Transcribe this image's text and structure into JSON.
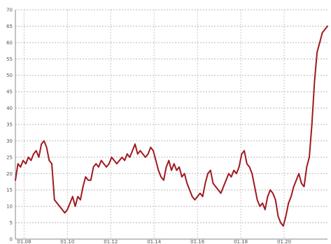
{
  "chart_data": {
    "type": "line",
    "title": "",
    "xlabel": "",
    "ylabel": "",
    "ylim": [
      0,
      70
    ],
    "yticks": [
      0,
      5,
      10,
      15,
      20,
      25,
      30,
      35,
      40,
      45,
      50,
      55,
      60,
      65,
      70
    ],
    "xlim": [
      0,
      36
    ],
    "xticks": [
      {
        "x": 1.0,
        "label": "01.08"
      },
      {
        "x": 6.0,
        "label": "01.10"
      },
      {
        "x": 11.0,
        "label": "01.12"
      },
      {
        "x": 16.0,
        "label": "01.14"
      },
      {
        "x": 21.0,
        "label": "01.16"
      },
      {
        "x": 26.0,
        "label": "01.18"
      },
      {
        "x": 31.0,
        "label": "01.20"
      }
    ],
    "grid": true,
    "line_color": "#a01a20",
    "series": [
      {
        "name": "",
        "x": [
          0.0,
          0.3,
          0.6,
          0.9,
          1.2,
          1.5,
          1.8,
          2.1,
          2.4,
          2.7,
          3.0,
          3.3,
          3.6,
          3.9,
          4.2,
          4.5,
          4.8,
          5.1,
          5.4,
          5.7,
          6.0,
          6.3,
          6.6,
          6.9,
          7.2,
          7.5,
          7.8,
          8.1,
          8.4,
          8.7,
          9.0,
          9.3,
          9.6,
          9.9,
          10.2,
          10.5,
          10.8,
          11.1,
          11.4,
          11.7,
          12.0,
          12.3,
          12.6,
          12.9,
          13.2,
          13.5,
          13.8,
          14.1,
          14.4,
          14.7,
          15.0,
          15.3,
          15.6,
          15.9,
          16.2,
          16.5,
          16.8,
          17.1,
          17.4,
          17.7,
          18.0,
          18.3,
          18.6,
          18.9,
          19.2,
          19.5,
          19.8,
          20.1,
          20.4,
          20.7,
          21.0,
          21.3,
          21.6,
          21.9,
          22.2,
          22.5,
          22.8,
          23.1,
          23.4,
          23.7,
          24.0,
          24.3,
          24.6,
          24.9,
          25.2,
          25.5,
          25.8,
          26.1,
          26.4,
          26.7,
          27.0,
          27.3,
          27.6,
          27.9,
          28.2,
          28.5,
          28.8,
          29.1,
          29.4,
          29.7,
          30.0,
          30.3,
          30.6,
          30.9,
          31.2,
          31.5,
          31.8,
          32.1,
          32.4,
          32.7,
          33.0,
          33.3,
          33.6,
          33.9,
          34.2,
          34.5,
          34.8,
          35.1,
          35.4,
          35.7,
          36.0
        ],
        "y": [
          18,
          23,
          22,
          24,
          23,
          25,
          24,
          26,
          27,
          25,
          29,
          30,
          28,
          24,
          23,
          12,
          11,
          10,
          9,
          8,
          9,
          11,
          13,
          10,
          13,
          12,
          16,
          19,
          18,
          18,
          22,
          23,
          22,
          24,
          23,
          22,
          23,
          25,
          24,
          23,
          24,
          25,
          24,
          26,
          25,
          27,
          29,
          26,
          27,
          26,
          25,
          26,
          28,
          27,
          24,
          21,
          19,
          18,
          22,
          24,
          21,
          23,
          21,
          22,
          19,
          20,
          17,
          15,
          13,
          12,
          13,
          14,
          13,
          17,
          20,
          21,
          17,
          16,
          15,
          14,
          16,
          18,
          20,
          19,
          21,
          20,
          22,
          26,
          27,
          23,
          22,
          20,
          16,
          12,
          10,
          11,
          9,
          13,
          15,
          14,
          12,
          7,
          5,
          4,
          7,
          11,
          13,
          16,
          18,
          20,
          17,
          16,
          22,
          25,
          35,
          48,
          57,
          60,
          63,
          64,
          65
        ]
      }
    ]
  }
}
